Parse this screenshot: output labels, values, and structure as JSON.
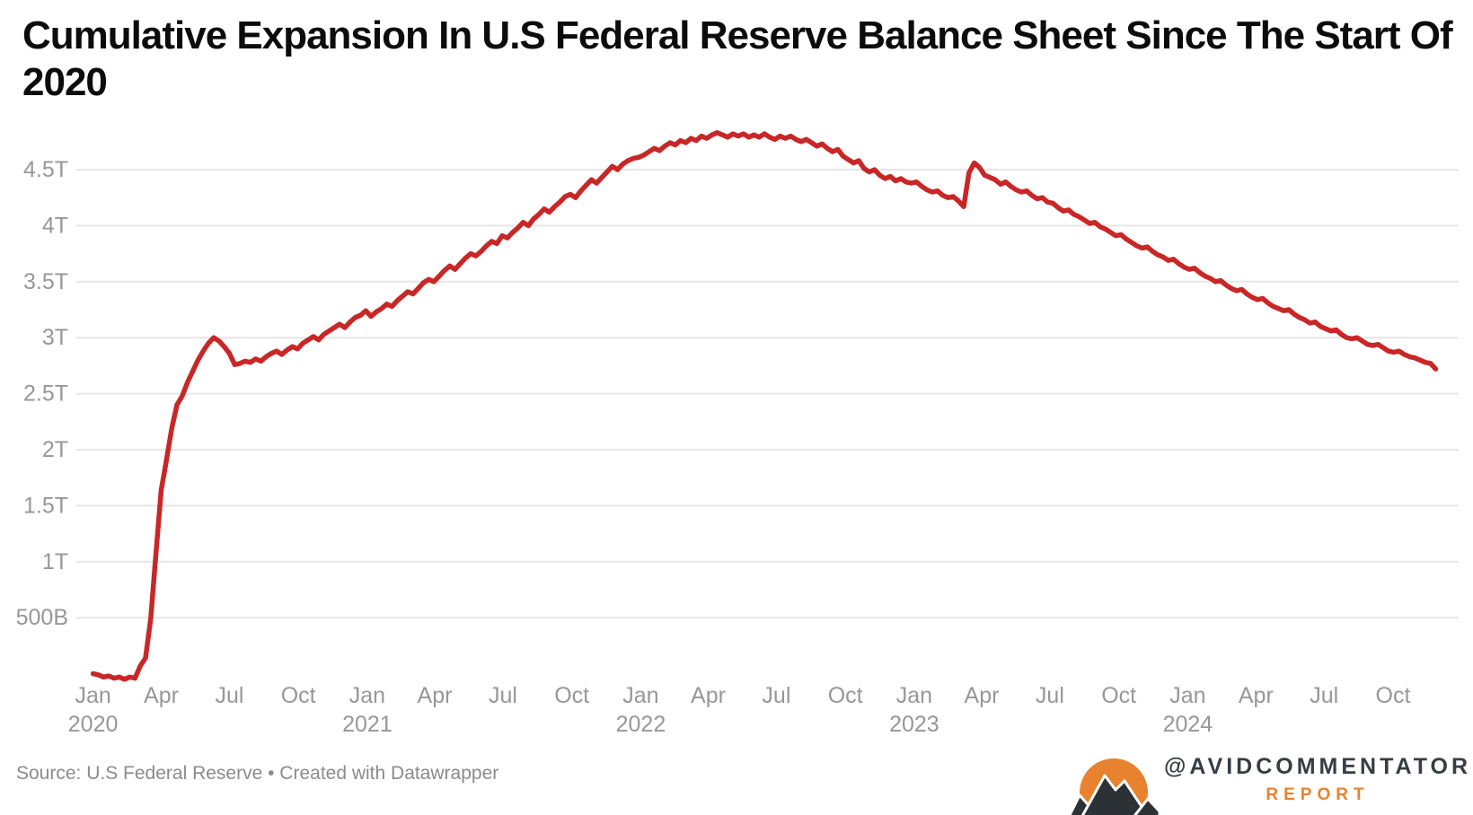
{
  "header": {
    "title_line1": "Cumulative Expansion In U.S Federal Reserve Balance Sheet Since The Start Of",
    "title_line2": "2020"
  },
  "footer": {
    "source_note": "Source: U.S Federal Reserve • Created with Datawrapper",
    "brand_handle": "@AVIDCOMMENTATOR",
    "brand_sub": "REPORT"
  },
  "colors": {
    "line": "#c92727",
    "grid": "#e6e6e6",
    "axis_label": "#979797",
    "title": "#0c0c0c",
    "source": "#8b8b8b",
    "brand_orange": "#e8822e",
    "brand_dark": "#383d42",
    "mountain_dark": "#2c3136",
    "mountain_outline": "#ffffff"
  },
  "chart_data": {
    "type": "line",
    "title": "Cumulative Expansion In U.S Federal Reserve Balance Sheet Since The Start Of 2020",
    "xlabel": "",
    "ylabel": "",
    "unit": "USD (B = billions, T = trillions)",
    "series_name": "Cumulative expansion since Jan 2020",
    "start_date": "2020-01-01",
    "interval_days": 7,
    "ylim": [
      -0.1,
      4.93
    ],
    "grid": true,
    "legend": "none",
    "y_ticks": [
      {
        "value": 0.5,
        "label": "500B"
      },
      {
        "value": 1.0,
        "label": "1T"
      },
      {
        "value": 1.5,
        "label": "1.5T"
      },
      {
        "value": 2.0,
        "label": "2T"
      },
      {
        "value": 2.5,
        "label": "2.5T"
      },
      {
        "value": 3.0,
        "label": "3T"
      },
      {
        "value": 3.5,
        "label": "3.5T"
      },
      {
        "value": 4.0,
        "label": "4T"
      },
      {
        "value": 4.5,
        "label": "4.5T"
      }
    ],
    "x_ticks": [
      {
        "label": "Jan",
        "year_label": "2020",
        "year": 2020,
        "month": 0
      },
      {
        "label": "Apr",
        "year": 2020,
        "month": 3
      },
      {
        "label": "Jul",
        "year": 2020,
        "month": 6
      },
      {
        "label": "Oct",
        "year": 2020,
        "month": 9
      },
      {
        "label": "Jan",
        "year_label": "2021",
        "year": 2021,
        "month": 0
      },
      {
        "label": "Apr",
        "year": 2021,
        "month": 3
      },
      {
        "label": "Jul",
        "year": 2021,
        "month": 6
      },
      {
        "label": "Oct",
        "year": 2021,
        "month": 9
      },
      {
        "label": "Jan",
        "year_label": "2022",
        "year": 2022,
        "month": 0
      },
      {
        "label": "Apr",
        "year": 2022,
        "month": 3
      },
      {
        "label": "Jul",
        "year": 2022,
        "month": 6
      },
      {
        "label": "Oct",
        "year": 2022,
        "month": 9
      },
      {
        "label": "Jan",
        "year_label": "2023",
        "year": 2023,
        "month": 0
      },
      {
        "label": "Apr",
        "year": 2023,
        "month": 3
      },
      {
        "label": "Jul",
        "year": 2023,
        "month": 6
      },
      {
        "label": "Oct",
        "year": 2023,
        "month": 9
      },
      {
        "label": "Jan",
        "year_label": "2024",
        "year": 2024,
        "month": 0
      },
      {
        "label": "Apr",
        "year": 2024,
        "month": 3
      },
      {
        "label": "Jul",
        "year": 2024,
        "month": 6
      },
      {
        "label": "Oct",
        "year": 2024,
        "month": 9
      }
    ],
    "values": [
      0.0,
      -0.01,
      -0.03,
      -0.02,
      -0.04,
      -0.03,
      -0.05,
      -0.03,
      -0.04,
      0.07,
      0.14,
      0.49,
      1.08,
      1.64,
      1.91,
      2.19,
      2.4,
      2.48,
      2.6,
      2.7,
      2.8,
      2.88,
      2.95,
      3.0,
      2.97,
      2.92,
      2.86,
      2.76,
      2.77,
      2.79,
      2.78,
      2.81,
      2.79,
      2.83,
      2.86,
      2.88,
      2.85,
      2.89,
      2.92,
      2.9,
      2.95,
      2.98,
      3.01,
      2.98,
      3.03,
      3.06,
      3.09,
      3.12,
      3.09,
      3.14,
      3.18,
      3.2,
      3.24,
      3.19,
      3.23,
      3.26,
      3.3,
      3.28,
      3.33,
      3.37,
      3.41,
      3.39,
      3.44,
      3.49,
      3.52,
      3.5,
      3.55,
      3.6,
      3.64,
      3.61,
      3.66,
      3.71,
      3.75,
      3.73,
      3.77,
      3.82,
      3.86,
      3.84,
      3.91,
      3.89,
      3.94,
      3.98,
      4.03,
      4.0,
      4.06,
      4.1,
      4.15,
      4.12,
      4.17,
      4.21,
      4.26,
      4.28,
      4.25,
      4.31,
      4.36,
      4.41,
      4.38,
      4.43,
      4.48,
      4.53,
      4.5,
      4.55,
      4.58,
      4.6,
      4.61,
      4.63,
      4.66,
      4.69,
      4.67,
      4.71,
      4.74,
      4.72,
      4.76,
      4.74,
      4.78,
      4.76,
      4.8,
      4.78,
      4.81,
      4.83,
      4.81,
      4.79,
      4.82,
      4.8,
      4.82,
      4.79,
      4.81,
      4.79,
      4.82,
      4.79,
      4.77,
      4.8,
      4.78,
      4.8,
      4.77,
      4.75,
      4.77,
      4.74,
      4.71,
      4.73,
      4.69,
      4.66,
      4.68,
      4.62,
      4.59,
      4.56,
      4.58,
      4.51,
      4.48,
      4.5,
      4.45,
      4.42,
      4.44,
      4.4,
      4.42,
      4.39,
      4.38,
      4.39,
      4.35,
      4.32,
      4.3,
      4.31,
      4.27,
      4.25,
      4.26,
      4.22,
      4.17,
      4.47,
      4.56,
      4.52,
      4.45,
      4.43,
      4.41,
      4.37,
      4.39,
      4.35,
      4.32,
      4.3,
      4.31,
      4.27,
      4.24,
      4.25,
      4.21,
      4.2,
      4.16,
      4.13,
      4.14,
      4.1,
      4.08,
      4.05,
      4.02,
      4.03,
      3.99,
      3.97,
      3.94,
      3.91,
      3.92,
      3.88,
      3.85,
      3.82,
      3.8,
      3.81,
      3.77,
      3.74,
      3.72,
      3.69,
      3.7,
      3.66,
      3.63,
      3.61,
      3.62,
      3.58,
      3.55,
      3.53,
      3.5,
      3.51,
      3.47,
      3.44,
      3.42,
      3.43,
      3.39,
      3.36,
      3.34,
      3.35,
      3.31,
      3.28,
      3.26,
      3.24,
      3.25,
      3.21,
      3.18,
      3.16,
      3.13,
      3.14,
      3.1,
      3.08,
      3.06,
      3.07,
      3.03,
      3.0,
      2.99,
      3.0,
      2.97,
      2.94,
      2.93,
      2.94,
      2.91,
      2.88,
      2.87,
      2.88,
      2.85,
      2.83,
      2.82,
      2.8,
      2.78,
      2.77,
      2.72
    ]
  }
}
